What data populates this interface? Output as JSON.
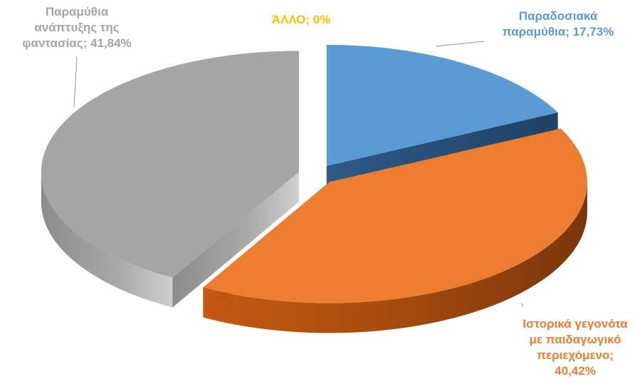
{
  "chart_data": {
    "type": "pie",
    "style": "3d-exploded",
    "slices": [
      {
        "label": "Παραδοσιακά παραμύθια",
        "value": 17.73,
        "display": "Παραδοσιακά\nπαραμύθια; 17,73%",
        "color": "#5b9bd5"
      },
      {
        "label": "Ιστορικά γεγονότα με παιδαγωγικό περιεχόμενο",
        "value": 40.42,
        "display": "Ιστορικά γεγονότα\nμε παιδαγωγικό\nπεριεχόμενο;\n40,42%",
        "color": "#ed7d31"
      },
      {
        "label": "Παραμύθια ανάπτυξης της φαντασίας",
        "value": 41.84,
        "display": "Παραμύθια\nανάπτυξης της\nφαντασίας; 41,84%",
        "color": "#a5a5a5"
      },
      {
        "label": "ΆΛΛΟ",
        "value": 0,
        "display": "ΆΛΛΟ; 0%",
        "color": "#ffc000"
      }
    ],
    "legend": "none",
    "data_labels": "outside-with-leader-lines"
  }
}
